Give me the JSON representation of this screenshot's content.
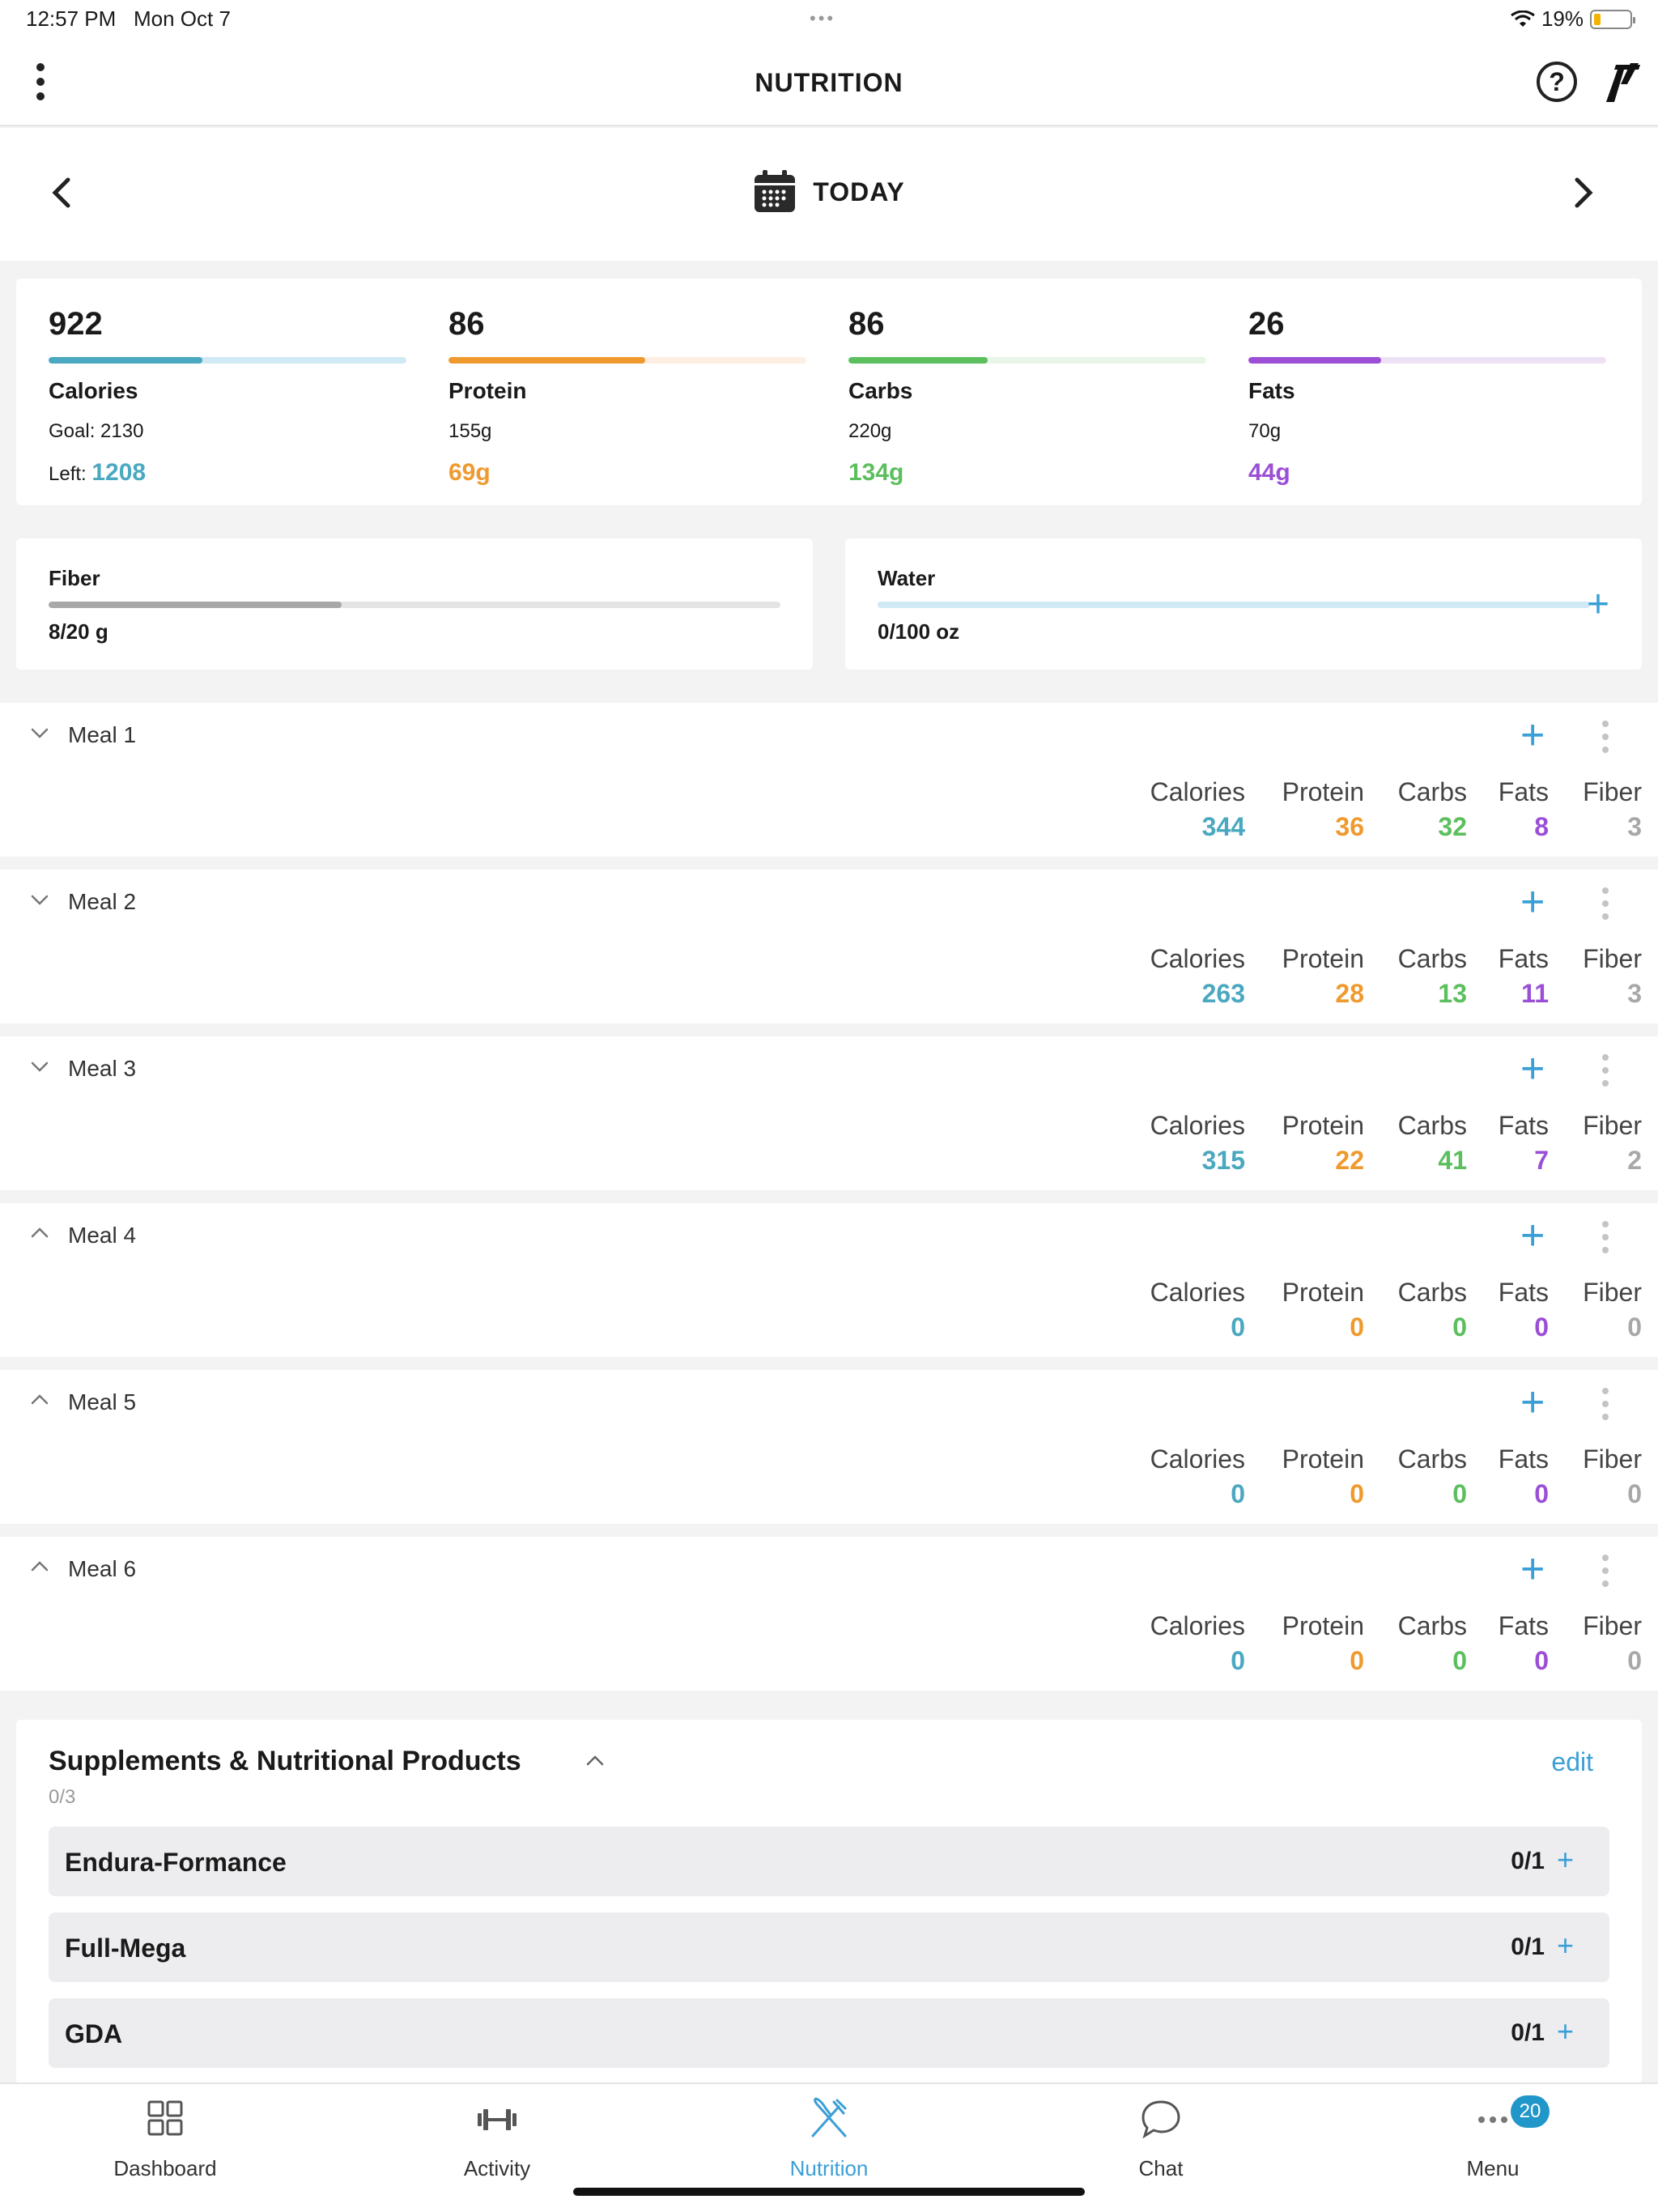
{
  "status": {
    "time": "12:57 PM",
    "date": "Mon Oct 7",
    "battery": "19%",
    "battery_level": 0.19
  },
  "header": {
    "title": "NUTRITION",
    "help_label": "?",
    "menu_icon": "kebab-icon",
    "logo_icon": "brand-logo"
  },
  "datenav": {
    "label": "TODAY"
  },
  "colors": {
    "calories": "#4aa8c0",
    "protein": "#ef9a2e",
    "carbs": "#5cbf5e",
    "fats": "#9b4fd6",
    "fiber": "#a8a8a8",
    "accent": "#3a9fd6"
  },
  "macros": [
    {
      "key": "calories",
      "value": "922",
      "name": "Calories",
      "goal": "Goal: 2130",
      "left_label": "Left: ",
      "left_value": "1208",
      "progress": 0.43
    },
    {
      "key": "protein",
      "value": "86",
      "name": "Protein",
      "goal": "155g",
      "left_value": "69g",
      "progress": 0.55
    },
    {
      "key": "carbs",
      "value": "86",
      "name": "Carbs",
      "goal": "220g",
      "left_value": "134g",
      "progress": 0.39
    },
    {
      "key": "fats",
      "value": "26",
      "name": "Fats",
      "goal": "70g",
      "left_value": "44g",
      "progress": 0.37
    }
  ],
  "fiber": {
    "label": "Fiber",
    "value": "8/20 g",
    "progress": 0.4
  },
  "water": {
    "label": "Water",
    "value": "0/100 oz",
    "progress": 0
  },
  "meal_columns": [
    "Calories",
    "Protein",
    "Carbs",
    "Fats",
    "Fiber"
  ],
  "meals": [
    {
      "name": "Meal 1",
      "expanded": false,
      "values": [
        "344",
        "36",
        "32",
        "8",
        "3"
      ]
    },
    {
      "name": "Meal 2",
      "expanded": false,
      "values": [
        "263",
        "28",
        "13",
        "11",
        "3"
      ]
    },
    {
      "name": "Meal 3",
      "expanded": false,
      "values": [
        "315",
        "22",
        "41",
        "7",
        "2"
      ]
    },
    {
      "name": "Meal 4",
      "expanded": true,
      "values": [
        "0",
        "0",
        "0",
        "0",
        "0"
      ]
    },
    {
      "name": "Meal 5",
      "expanded": true,
      "values": [
        "0",
        "0",
        "0",
        "0",
        "0"
      ]
    },
    {
      "name": "Meal 6",
      "expanded": true,
      "values": [
        "0",
        "0",
        "0",
        "0",
        "0"
      ]
    }
  ],
  "supplements": {
    "title": "Supplements & Nutritional Products",
    "count": "0/3",
    "edit_label": "edit",
    "items": [
      {
        "name": "Endura-Formance",
        "count": "0/1"
      },
      {
        "name": "Full-Mega",
        "count": "0/1"
      },
      {
        "name": "GDA",
        "count": "0/1"
      }
    ]
  },
  "tabs": [
    {
      "label": "Dashboard",
      "icon": "grid-icon"
    },
    {
      "label": "Activity",
      "icon": "dumbbell-icon"
    },
    {
      "label": "Nutrition",
      "icon": "fork-knife-icon",
      "active": true
    },
    {
      "label": "Chat",
      "icon": "chat-bubble-icon"
    },
    {
      "label": "Menu",
      "icon": "ellipsis-icon",
      "badge": "20"
    }
  ]
}
